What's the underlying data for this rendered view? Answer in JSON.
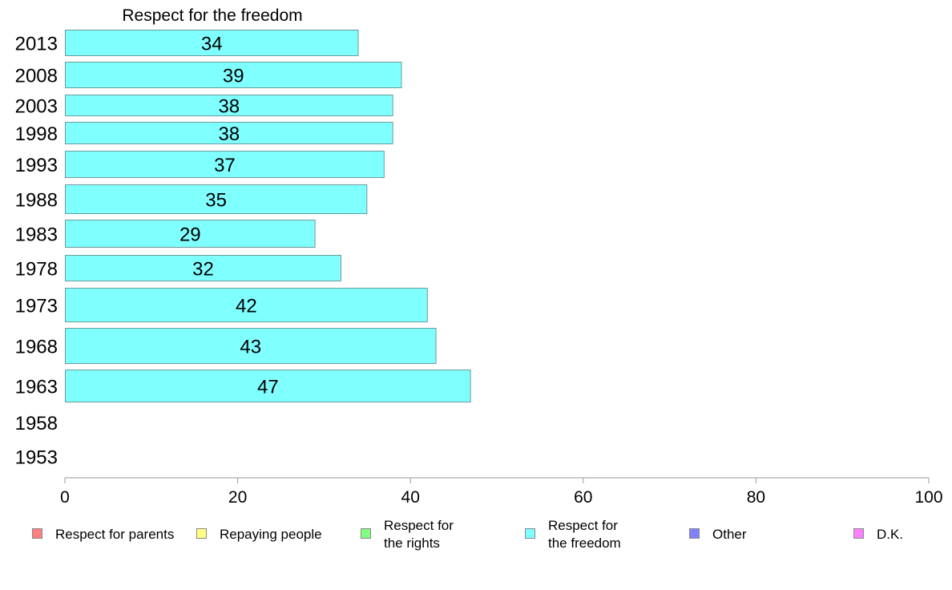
{
  "chart_data": {
    "type": "bar",
    "orientation": "horizontal",
    "title": "Respect for the freedom",
    "categories": [
      "2013",
      "2008",
      "2003",
      "1998",
      "1993",
      "1988",
      "1983",
      "1978",
      "1973",
      "1968",
      "1963",
      "1958",
      "1953"
    ],
    "series": [
      {
        "name": "Respect for the freedom",
        "color": "#80ffff",
        "values": [
          34,
          39,
          38,
          38,
          37,
          35,
          29,
          32,
          42,
          43,
          47,
          null,
          null
        ]
      }
    ],
    "xlim": [
      0,
      100
    ],
    "xticks": [
      0,
      20,
      40,
      60,
      80,
      100
    ],
    "grid": false,
    "legend_position": "bottom",
    "legend": [
      {
        "lines": [
          "Respect for parents"
        ],
        "color": "#ff8080"
      },
      {
        "lines": [
          "Repaying people"
        ],
        "color": "#ffff80"
      },
      {
        "lines": [
          "Respect for",
          "the rights"
        ],
        "color": "#80ff80"
      },
      {
        "lines": [
          "Respect for",
          "the freedom"
        ],
        "color": "#80ffff"
      },
      {
        "lines": [
          "Other"
        ],
        "color": "#8080ff"
      },
      {
        "lines": [
          "D.K."
        ],
        "color": "#ff80ff"
      }
    ]
  }
}
